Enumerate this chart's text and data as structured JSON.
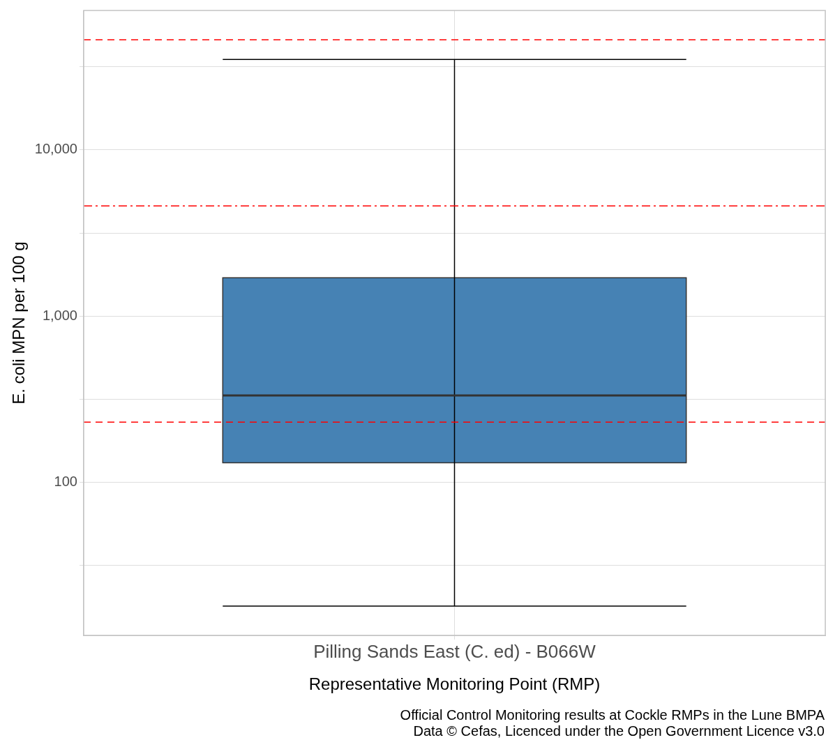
{
  "chart_data": {
    "type": "box",
    "xlabel": "Representative Monitoring Point (RMP)",
    "ylabel": "E. coli MPN per 100 g",
    "categories": [
      "Pilling Sands East (C. ed) - B066W"
    ],
    "series": [
      {
        "color": "#4682b4",
        "boxes": [
          {
            "low": 18,
            "q1": 131,
            "median": 333,
            "q3": 1700,
            "high": 35000
          }
        ]
      }
    ],
    "log": "y",
    "ylim": [
      12,
      69000
    ],
    "yticks": [
      {
        "value": 31.6,
        "label": null
      },
      {
        "value": 100,
        "label": "100"
      },
      {
        "value": 316,
        "label": null
      },
      {
        "value": 1000,
        "label": "1,000"
      },
      {
        "value": 3160,
        "label": null
      },
      {
        "value": 10000,
        "label": "10,000"
      },
      {
        "value": 31600,
        "label": null
      }
    ],
    "grid": true,
    "ref_lines": [
      {
        "axis": "y",
        "value": 46000,
        "color": "#ff0000",
        "line_style": "dashed"
      },
      {
        "axis": "y",
        "value": 4600,
        "color": "#ff0000",
        "line_style": "dashdot"
      },
      {
        "axis": "y",
        "value": 230,
        "color": "#ff0000",
        "line_style": "dashed"
      }
    ],
    "annotations": [
      "Official Control Monitoring results at Cockle RMPs in the Lune BMPA",
      "Data © Cefas, Licenced under the Open Government Licence v3.0"
    ]
  }
}
